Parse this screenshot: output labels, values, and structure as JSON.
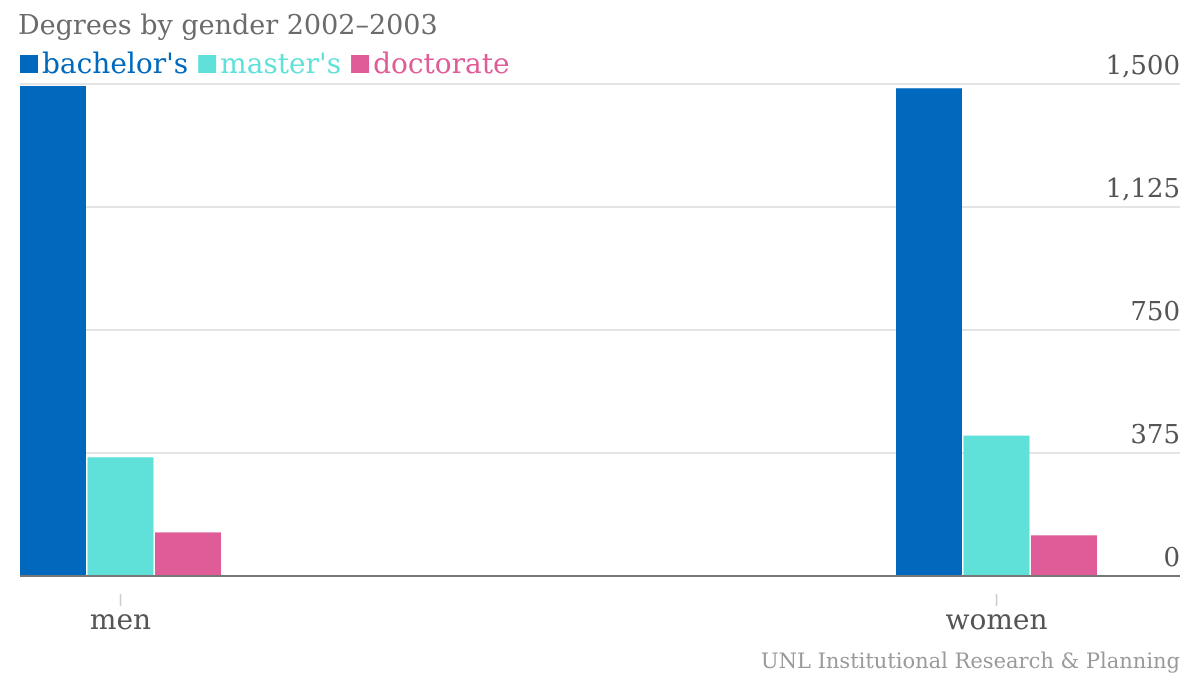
{
  "chart_data": {
    "type": "bar",
    "title": "Degrees by gender 2002–2003",
    "categories": [
      "men",
      "women"
    ],
    "series": [
      {
        "name": "bachelor's",
        "color": "#0069bd",
        "values": [
          1494,
          1487
        ]
      },
      {
        "name": "master's",
        "color": "#5fe1da",
        "values": [
          362,
          428
        ]
      },
      {
        "name": "doctorate",
        "color": "#e05c98",
        "values": [
          133,
          124
        ]
      }
    ],
    "ylim": [
      0,
      1500
    ],
    "yticks": [
      0,
      375,
      750,
      1125,
      1500
    ],
    "ytick_labels": [
      "0",
      "375",
      "750",
      "1,125",
      "1,500"
    ],
    "grid": true,
    "legend_position": "top-left",
    "yaxis_position": "right",
    "source": "UNL Institutional Research & Planning"
  }
}
